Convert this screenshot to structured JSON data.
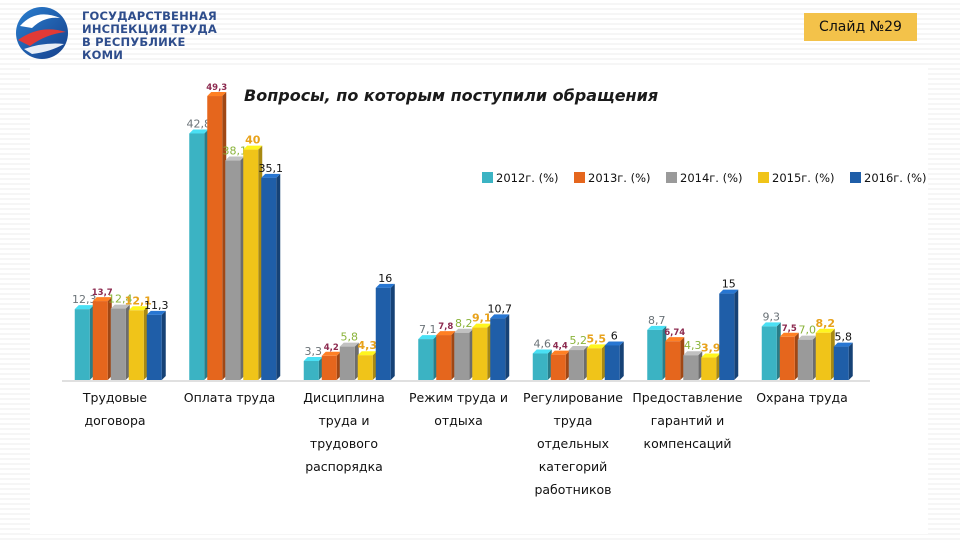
{
  "header": {
    "org_line1": "ГОСУДАРСТВЕННАЯ",
    "org_line2": "ИНСПЕКЦИЯ ТРУДА",
    "org_line3": "В РЕСПУБЛИКЕ КОМИ",
    "slide_label": "Слайд №29"
  },
  "colors": {
    "accent_badge": "#f3c24a",
    "org_text": "#2e4d8c"
  },
  "chart_data": {
    "type": "bar",
    "title": "Вопросы, по которым поступили обращения",
    "categories": [
      [
        "Трудовые",
        "договора"
      ],
      [
        "Оплата труда"
      ],
      [
        "Дисциплина",
        "труда и",
        "трудового",
        "распорядка"
      ],
      [
        "Режим труда и",
        "отдыха"
      ],
      [
        "Регулирование",
        "труда",
        "отдельных",
        "категорий",
        "работников"
      ],
      [
        "Предоставление",
        "гарантий и",
        "компенсаций"
      ],
      [
        "Охрана труда"
      ]
    ],
    "series": [
      {
        "name": "2012г. (%)",
        "color": "#3bb3c3",
        "label_color": "#6b7378",
        "values": [
          12.3,
          42.8,
          3.3,
          7.1,
          4.6,
          8.7,
          9.3
        ],
        "labels": [
          "12,3",
          "42,8",
          "3,3",
          "7,1",
          "4,6",
          "8,7",
          "9,3"
        ]
      },
      {
        "name": "2013г. (%)",
        "color": "#e5661d",
        "label_color": "#8c2a4f",
        "values": [
          13.7,
          49.3,
          4.2,
          7.8,
          4.4,
          6.74,
          7.5
        ],
        "labels": [
          "13,7",
          "49,3",
          "4,2",
          "7,8",
          "4,4",
          "6,74",
          "7,5"
        ]
      },
      {
        "name": "2014г. (%)",
        "color": "#9a9a9a",
        "label_color": "#8ab33a",
        "values": [
          12.4,
          38.1,
          5.8,
          8.2,
          5.2,
          4.3,
          7.0
        ],
        "labels": [
          "12,4",
          "38,1",
          "5,8",
          "8,2",
          "5,2",
          "4,3",
          "7,0"
        ]
      },
      {
        "name": "2015г. (%)",
        "color": "#f0c419",
        "label_color": "#e8a21b",
        "values": [
          12.1,
          40,
          4.3,
          9.1,
          5.5,
          3.9,
          8.2
        ],
        "labels": [
          "12,1",
          "40",
          "4,3",
          "9,1",
          "5,5",
          "3,9",
          "8,2"
        ]
      },
      {
        "name": "2016г. (%)",
        "color": "#1f5ea8",
        "label_color": "#111111",
        "values": [
          11.3,
          35.1,
          16,
          10.7,
          6,
          15,
          5.8
        ],
        "labels": [
          "11,3",
          "35,1",
          "16",
          "10,7",
          "6",
          "15",
          "5,8"
        ]
      }
    ],
    "ylim": [
      0,
      50
    ],
    "grid": false,
    "legend_position": "top-right",
    "xlabel": "",
    "ylabel": ""
  }
}
